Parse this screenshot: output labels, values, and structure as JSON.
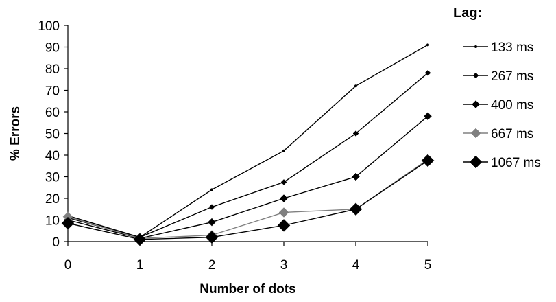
{
  "chart_data": {
    "type": "line",
    "title": "",
    "xlabel": "Number of dots",
    "ylabel": "% Errors",
    "x": [
      0,
      1,
      2,
      3,
      4,
      5
    ],
    "ylim": [
      0,
      100
    ],
    "yticks": [
      0,
      10,
      20,
      30,
      40,
      50,
      60,
      70,
      80,
      90,
      100
    ],
    "grid": false,
    "legend_title": "Lag:",
    "legend_position": "right",
    "series": [
      {
        "name": "133 ms",
        "values": [
          12,
          2,
          24,
          42,
          72,
          91
        ],
        "color": "#000000",
        "marker": "small-dot"
      },
      {
        "name": "267 ms",
        "values": [
          11,
          2,
          16,
          27.5,
          50,
          78
        ],
        "color": "#000000",
        "marker": "small-diamond"
      },
      {
        "name": "400 ms",
        "values": [
          10,
          1.5,
          9,
          20,
          30,
          58
        ],
        "color": "#000000",
        "marker": "medium-diamond"
      },
      {
        "name": "667 ms",
        "values": [
          11.5,
          1.5,
          3,
          13.5,
          15,
          38
        ],
        "color": "#808080",
        "marker": "gray-diamond"
      },
      {
        "name": "1067 ms",
        "values": [
          8.5,
          1,
          2,
          7.5,
          15,
          37.5
        ],
        "color": "#000000",
        "marker": "large-diamond"
      }
    ]
  }
}
